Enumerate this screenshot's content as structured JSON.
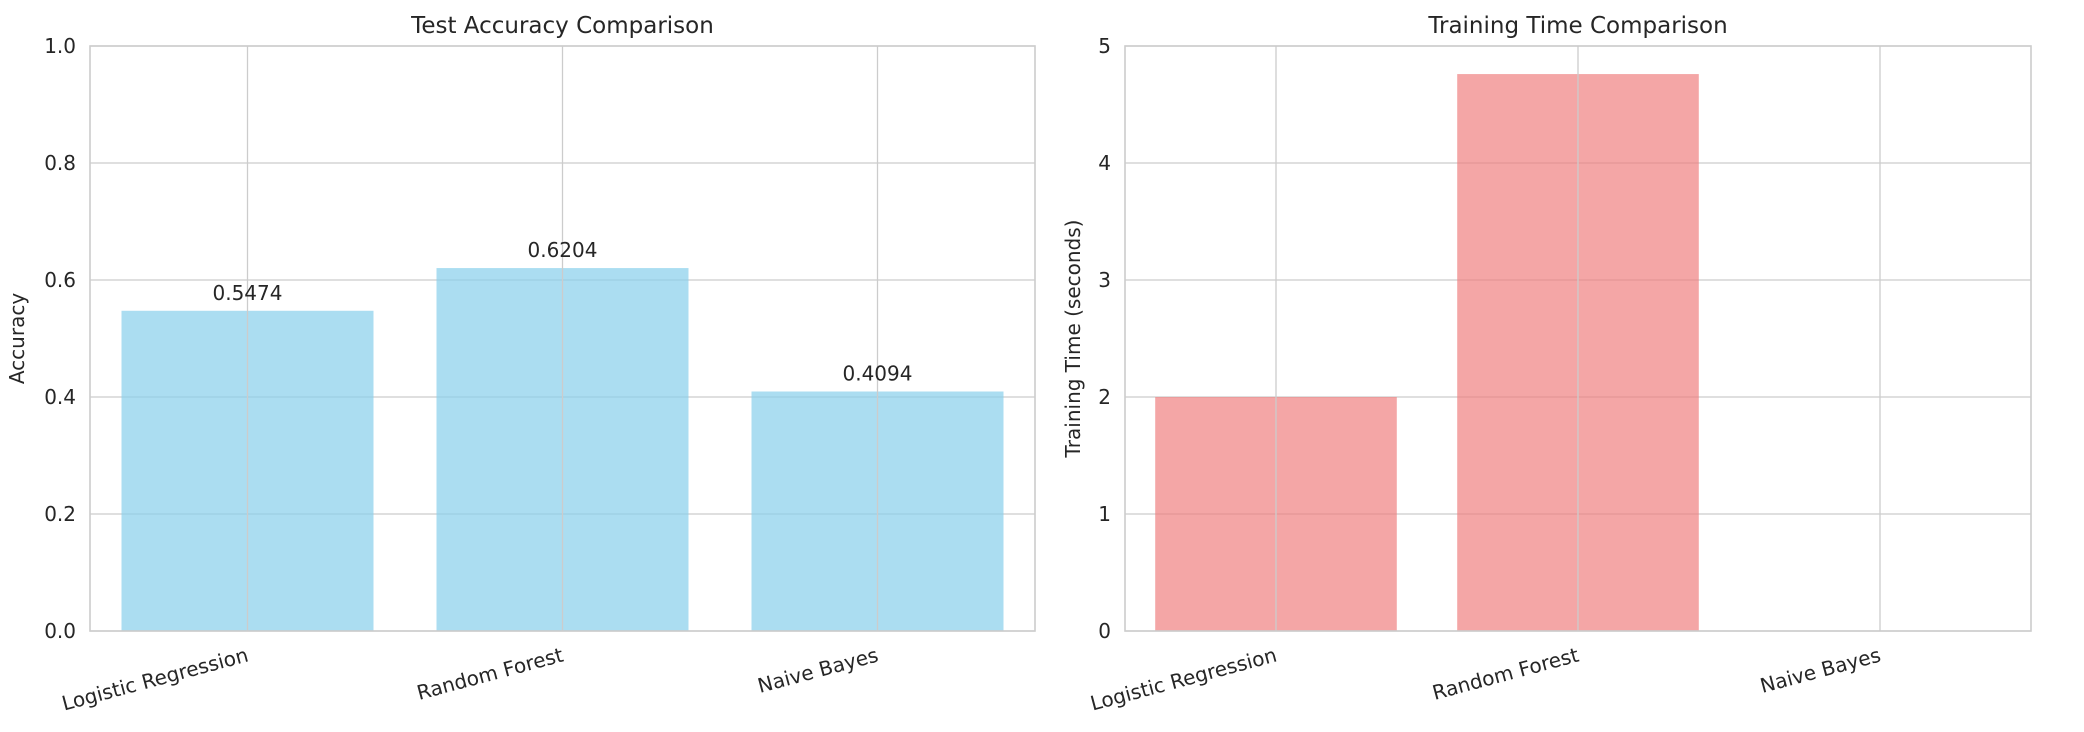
{
  "chart_data": [
    {
      "type": "bar",
      "title": "Test Accuracy Comparison",
      "xlabel": "",
      "ylabel": "Accuracy",
      "categories": [
        "Logistic Regression",
        "Random Forest",
        "Naive Bayes"
      ],
      "values": [
        0.5474,
        0.6204,
        0.4094
      ],
      "data_labels": [
        "0.5474",
        "0.6204",
        "0.4094"
      ],
      "ylim": [
        0,
        1.0
      ],
      "yticks": [
        0.0,
        0.2,
        0.4,
        0.6,
        0.8,
        1.0
      ],
      "ytick_labels": [
        "0.0",
        "0.2",
        "0.4",
        "0.6",
        "0.8",
        "1.0"
      ],
      "grid": true,
      "bar_color": "#87ceeb"
    },
    {
      "type": "bar",
      "title": "Training Time Comparison",
      "xlabel": "",
      "ylabel": "Training Time (seconds)",
      "categories": [
        "Logistic Regression",
        "Random Forest",
        "Naive Bayes"
      ],
      "values": [
        2.0,
        4.76,
        0.0
      ],
      "ylim": [
        0,
        5
      ],
      "yticks": [
        0,
        1,
        2,
        3,
        4,
        5
      ],
      "ytick_labels": [
        "0",
        "1",
        "2",
        "3",
        "4",
        "5"
      ],
      "grid": true,
      "bar_color": "#f08080"
    }
  ]
}
